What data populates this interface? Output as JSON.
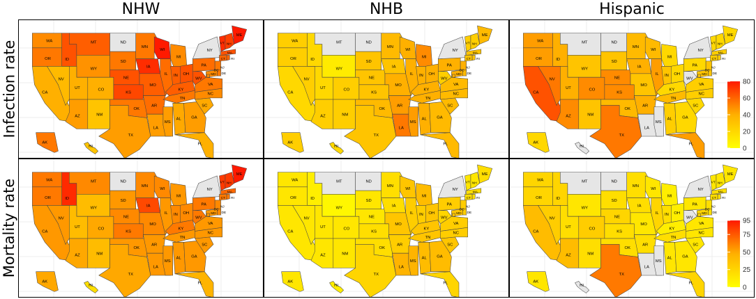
{
  "columns": [
    "NHW",
    "NHB",
    "Hispanic"
  ],
  "rows": [
    "Infection rate",
    "Mortality rate"
  ],
  "palette": {
    "low": "#ffff00",
    "mid": "#ffb000",
    "high": "#ff1a00",
    "no_data": "#e6e6e6",
    "border": "#444444",
    "grid": "#ececec"
  },
  "legends": {
    "infection": {
      "ticks": [
        "80",
        "60",
        "40",
        "20",
        "0"
      ],
      "max": 80
    },
    "mortality": {
      "ticks": [
        "95",
        "75",
        "50",
        "25",
        "0"
      ],
      "max": 95
    }
  },
  "states": {
    "WA": {
      "name": "WA"
    },
    "OR": {
      "name": "OR"
    },
    "CA": {
      "name": "CA"
    },
    "NV": {
      "name": "NV"
    },
    "ID": {
      "name": "ID"
    },
    "MT": {
      "name": "MT"
    },
    "WY": {
      "name": "WY"
    },
    "UT": {
      "name": "UT"
    },
    "AZ": {
      "name": "AZ"
    },
    "CO": {
      "name": "CO"
    },
    "NM": {
      "name": "NM"
    },
    "ND": {
      "name": "ND"
    },
    "SD": {
      "name": "SD"
    },
    "NE": {
      "name": "NE"
    },
    "KS": {
      "name": "KS"
    },
    "OK": {
      "name": "OK"
    },
    "TX": {
      "name": "TX"
    },
    "MN": {
      "name": "MN"
    },
    "IA": {
      "name": "IA"
    },
    "MO": {
      "name": "MO"
    },
    "AR": {
      "name": "AR"
    },
    "LA": {
      "name": "LA"
    },
    "WI": {
      "name": "WI"
    },
    "IL": {
      "name": "IL"
    },
    "MS": {
      "name": "MS"
    },
    "MI": {
      "name": "MI"
    },
    "IN": {
      "name": "IN"
    },
    "OH": {
      "name": "OH"
    },
    "KY": {
      "name": "KY"
    },
    "TN": {
      "name": "TN"
    },
    "AL": {
      "name": "AL"
    },
    "GA": {
      "name": "GA"
    },
    "FL": {
      "name": "FL"
    },
    "SC": {
      "name": "SC"
    },
    "NC": {
      "name": "NC"
    },
    "VA": {
      "name": "VA"
    },
    "WV": {
      "name": "WV"
    },
    "PA": {
      "name": "PA"
    },
    "NY": {
      "name": "NY"
    },
    "ME": {
      "name": "ME"
    },
    "VT": {
      "name": "VT"
    },
    "NH": {
      "name": "NH"
    },
    "MA": {
      "name": "MA"
    },
    "CT": {
      "name": "CT"
    },
    "RI": {
      "name": "RI"
    },
    "NJ": {
      "name": "NJ"
    },
    "DE": {
      "name": "DE"
    },
    "MD": {
      "name": "MD"
    },
    "DC": {
      "name": "DC"
    },
    "AK": {
      "name": "AK"
    },
    "HI": {
      "name": "HI"
    }
  },
  "values": {
    "NHW_infection": {
      "WA": 50,
      "OR": 55,
      "CA": 40,
      "NV": 35,
      "ID": 65,
      "MT": 62,
      "WY": 48,
      "UT": 40,
      "AZ": 45,
      "CO": 40,
      "NM": 30,
      "ND": null,
      "SD": 55,
      "NE": 65,
      "KS": 68,
      "OK": 55,
      "TX": 45,
      "MN": 55,
      "IA": 75,
      "MO": 62,
      "AR": 58,
      "LA": 45,
      "WI": 80,
      "IL": 58,
      "MS": 45,
      "MI": 50,
      "IN": 62,
      "OH": 65,
      "KY": 62,
      "TN": 55,
      "AL": 42,
      "GA": 45,
      "FL": 40,
      "SC": 42,
      "NC": 50,
      "VA": 55,
      "WV": 65,
      "PA": 58,
      "NY": null,
      "ME": 80,
      "VT": 75,
      "NH": 70,
      "MA": 65,
      "CT": 60,
      "RI": 60,
      "NJ": 55,
      "DE": 55,
      "MD": 50,
      "DC": 50,
      "AK": 55,
      "HI": 30
    },
    "NHB_infection": {
      "WA": 25,
      "OR": 25,
      "CA": 20,
      "NV": 25,
      "ID": 20,
      "MT": null,
      "WY": 10,
      "UT": 20,
      "AZ": 25,
      "CO": 25,
      "NM": 25,
      "ND": null,
      "SD": 30,
      "NE": 30,
      "KS": 30,
      "OK": 35,
      "TX": 30,
      "MN": 35,
      "IA": 30,
      "MO": 40,
      "AR": 45,
      "LA": 55,
      "WI": 40,
      "IL": 40,
      "MS": 45,
      "MI": 50,
      "IN": 40,
      "OH": 40,
      "KY": 40,
      "TN": 40,
      "AL": 40,
      "GA": 35,
      "FL": 35,
      "SC": 35,
      "NC": 35,
      "VA": 35,
      "WV": 25,
      "PA": 40,
      "NY": null,
      "ME": 35,
      "VT": 25,
      "NH": 25,
      "MA": 30,
      "CT": 30,
      "RI": 30,
      "NJ": 40,
      "DE": 35,
      "MD": 40,
      "DC": 40,
      "AK": 25,
      "HI": 20
    },
    "Hispanic_infection": {
      "WA": 45,
      "OR": 45,
      "CA": 65,
      "NV": 55,
      "ID": 40,
      "MT": null,
      "WY": 30,
      "UT": 40,
      "AZ": 50,
      "CO": 50,
      "NM": 30,
      "ND": null,
      "SD": 30,
      "NE": 50,
      "KS": 50,
      "OK": 35,
      "TX": 55,
      "MN": 35,
      "IA": 40,
      "MO": 30,
      "AR": 40,
      "LA": null,
      "WI": 35,
      "IL": 45,
      "MS": null,
      "MI": 20,
      "IN": 30,
      "OH": 20,
      "KY": 20,
      "TN": 35,
      "AL": 25,
      "GA": 20,
      "FL": 45,
      "SC": 20,
      "NC": 25,
      "VA": 25,
      "WV": null,
      "PA": 20,
      "NY": null,
      "ME": 20,
      "VT": 20,
      "NH": 20,
      "MA": 25,
      "CT": 25,
      "RI": 25,
      "NJ": 30,
      "DE": 30,
      "MD": 30,
      "DC": 30,
      "AK": 20,
      "HI": null
    },
    "NHW_mortality": {
      "WA": 65,
      "OR": 65,
      "CA": 55,
      "NV": 55,
      "ID": 90,
      "MT": 60,
      "WY": 40,
      "UT": 40,
      "AZ": 50,
      "CO": 50,
      "NM": 40,
      "ND": null,
      "SD": 55,
      "NE": 60,
      "KS": 65,
      "OK": 55,
      "TX": 50,
      "MN": 60,
      "IA": 80,
      "MO": 60,
      "AR": 55,
      "LA": 55,
      "WI": 60,
      "IL": 55,
      "MS": 55,
      "MI": 55,
      "IN": 60,
      "OH": 60,
      "KY": 65,
      "TN": 55,
      "AL": 55,
      "GA": 55,
      "FL": 45,
      "SC": 55,
      "NC": 55,
      "VA": 55,
      "WV": 65,
      "PA": 65,
      "NY": null,
      "ME": 95,
      "VT": 85,
      "NH": 85,
      "MA": 70,
      "CT": 65,
      "RI": 65,
      "NJ": 60,
      "DE": 60,
      "MD": 55,
      "DC": 55,
      "AK": 50,
      "HI": 20
    },
    "NHB_mortality": {
      "WA": 15,
      "OR": 15,
      "CA": 15,
      "NV": 15,
      "ID": 10,
      "MT": null,
      "WY": 5,
      "UT": 15,
      "AZ": 15,
      "CO": 15,
      "NM": 15,
      "ND": null,
      "SD": 15,
      "NE": 15,
      "KS": 20,
      "OK": 20,
      "TX": 25,
      "MN": 20,
      "IA": 20,
      "MO": 35,
      "AR": 30,
      "LA": 45,
      "WI": 35,
      "IL": 30,
      "MS": 45,
      "MI": 40,
      "IN": 30,
      "OH": 35,
      "KY": 35,
      "TN": 35,
      "AL": 40,
      "GA": 40,
      "FL": 25,
      "SC": 35,
      "NC": 30,
      "VA": 30,
      "WV": 25,
      "PA": 30,
      "NY": null,
      "ME": 20,
      "VT": 15,
      "NH": 15,
      "MA": 20,
      "CT": 20,
      "RI": 20,
      "NJ": 30,
      "DE": 30,
      "MD": 35,
      "DC": 35,
      "AK": 15,
      "HI": 10
    },
    "Hispanic_mortality": {
      "WA": 25,
      "OR": 25,
      "CA": 40,
      "NV": 30,
      "ID": 25,
      "MT": null,
      "WY": 15,
      "UT": 20,
      "AZ": 40,
      "CO": 30,
      "NM": 20,
      "ND": null,
      "SD": 20,
      "NE": 25,
      "KS": 20,
      "OK": 20,
      "TX": 65,
      "MN": 20,
      "IA": 20,
      "MO": 15,
      "AR": 20,
      "LA": null,
      "WI": 15,
      "IL": 25,
      "MS": null,
      "MI": 10,
      "IN": 20,
      "OH": 10,
      "KY": 10,
      "TN": 20,
      "AL": 15,
      "GA": 15,
      "FL": 25,
      "SC": 15,
      "NC": 15,
      "VA": 15,
      "WV": null,
      "PA": 15,
      "NY": null,
      "ME": 15,
      "VT": 15,
      "NH": 15,
      "MA": 20,
      "CT": 20,
      "RI": 20,
      "NJ": 20,
      "DE": 20,
      "MD": 25,
      "DC": 25,
      "AK": 15,
      "HI": null
    }
  }
}
